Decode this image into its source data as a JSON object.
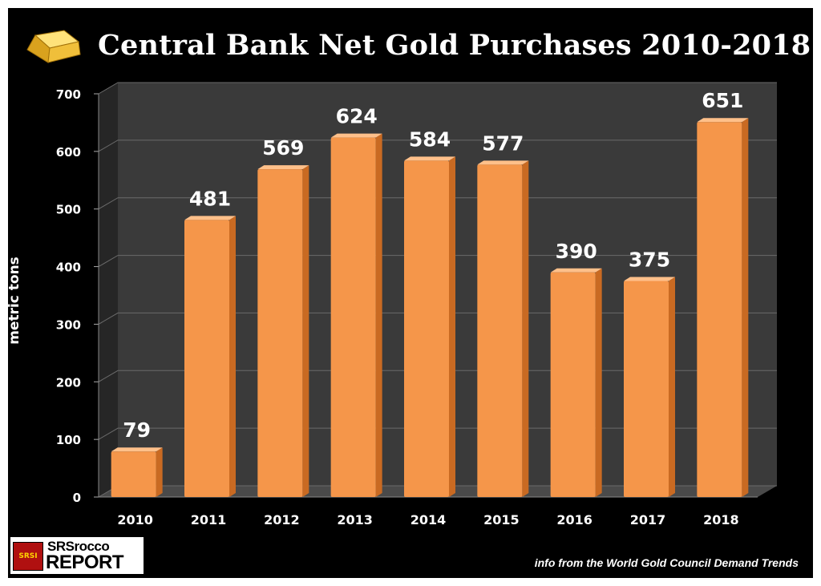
{
  "title": "Central Bank Net Gold Purchases 2010-2018",
  "source_note": "info from the World Gold Council Demand Trends",
  "logo": {
    "line1": "SRSrocco",
    "line2": "REPORT",
    "badge": "SRSI"
  },
  "icons": {
    "title_icon": "gold-bar-icon"
  },
  "colors": {
    "bar": "#f5964a",
    "bar_side": "#c96a22",
    "bar_top": "#ffc08a",
    "background": "#000000",
    "plot_back": "#3a3a3a",
    "text": "#ffffff"
  },
  "chart_data": {
    "type": "bar",
    "title": "Central Bank Net Gold Purchases 2010-2018",
    "xlabel": "",
    "ylabel": "metric tons",
    "categories": [
      "2010",
      "2011",
      "2012",
      "2013",
      "2014",
      "2015",
      "2016",
      "2017",
      "2018"
    ],
    "values": [
      79,
      481,
      569,
      624,
      584,
      577,
      390,
      375,
      651
    ],
    "data_labels": [
      "79",
      "481",
      "569",
      "624",
      "584",
      "577",
      "390",
      "375",
      "651"
    ],
    "yticks": [
      "0",
      "100",
      "200",
      "300",
      "400",
      "500",
      "600",
      "700"
    ],
    "ylim": [
      0,
      700
    ],
    "grid": true,
    "legend": "none",
    "style": "3d-bar"
  }
}
